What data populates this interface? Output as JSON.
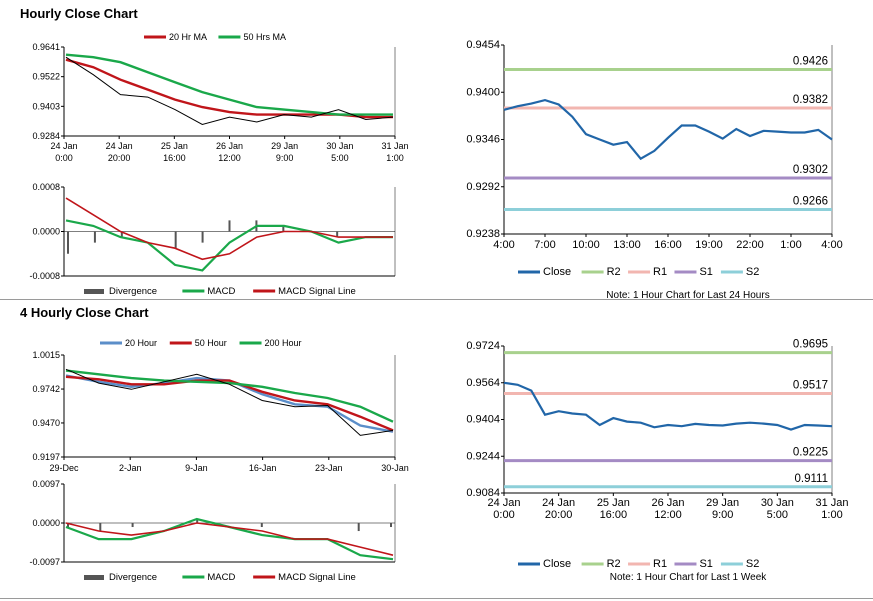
{
  "sections": [
    {
      "title": "Hourly Close Chart"
    },
    {
      "title": "4 Hourly Close Chart"
    }
  ],
  "chart_data": [
    {
      "id": "hourly_price",
      "type": "line",
      "legend": [
        "20 Hr MA",
        "50 Hrs MA"
      ],
      "colors": {
        "price": "#000000",
        "ma20": "#c0151a",
        "ma50": "#1aa84a"
      },
      "yticks": [
        "0.9641",
        "0.9522",
        "0.9403",
        "0.9284"
      ],
      "ylim": [
        0.9284,
        0.9641
      ],
      "xticks": [
        [
          "24 Jan",
          "0:00"
        ],
        [
          "24 Jan",
          "20:00"
        ],
        [
          "25 Jan",
          "16:00"
        ],
        [
          "26 Jan",
          "12:00"
        ],
        [
          "29 Jan",
          "9:00"
        ],
        [
          "30 Jan",
          "5:00"
        ],
        [
          "31 Jan",
          "1:00"
        ]
      ],
      "x": [
        0,
        0.5,
        1,
        1.5,
        2,
        2.5,
        3,
        3.5,
        4,
        4.5,
        5,
        5.5,
        6
      ],
      "series": [
        {
          "name": "20 Hr MA",
          "values": [
            0.959,
            0.956,
            0.951,
            0.947,
            0.943,
            0.94,
            0.938,
            0.937,
            0.937,
            0.937,
            0.937,
            0.936,
            0.936
          ]
        },
        {
          "name": "50 Hrs MA",
          "values": [
            0.961,
            0.96,
            0.958,
            0.954,
            0.95,
            0.946,
            0.943,
            0.94,
            0.939,
            0.938,
            0.937,
            0.937,
            0.937
          ]
        },
        {
          "name": "",
          "values": [
            0.96,
            0.953,
            0.945,
            0.944,
            0.939,
            0.933,
            0.936,
            0.934,
            0.937,
            0.936,
            0.939,
            0.935,
            0.936
          ]
        }
      ]
    },
    {
      "id": "hourly_macd",
      "type": "line",
      "legend": [
        "Divergence",
        "MACD",
        "MACD Signal Line"
      ],
      "colors": {
        "divergence": "#555555",
        "macd": "#1aa84a",
        "signal": "#c0151a"
      },
      "yticks": [
        "0.0008",
        "0.0000",
        "-0.0008"
      ],
      "ylim": [
        -0.0008,
        0.0008
      ],
      "x": [
        0,
        0.5,
        1,
        1.5,
        2,
        2.5,
        3,
        3.5,
        4,
        4.5,
        5,
        5.5,
        6
      ],
      "series": [
        {
          "name": "MACD",
          "values": [
            0.0002,
            0.0001,
            -0.0001,
            -0.0002,
            -0.0006,
            -0.0007,
            -0.0002,
            0.0001,
            0.0001,
            0.0,
            -0.0002,
            -0.0001,
            -0.0001
          ]
        },
        {
          "name": "MACD Signal Line",
          "values": [
            0.0006,
            0.0003,
            0.0,
            -0.0002,
            -0.0003,
            -0.0005,
            -0.0004,
            -0.0001,
            0.0,
            0.0,
            -0.0001,
            -0.0001,
            -0.0001
          ]
        },
        {
          "name": "Divergence",
          "values": [
            -0.0004,
            -0.0002,
            -0.0001,
            0.0,
            -0.0003,
            -0.0002,
            0.0002,
            0.0002,
            0.0001,
            0.0,
            -0.0001,
            0.0,
            0.0
          ]
        }
      ]
    },
    {
      "id": "hourly_levels",
      "type": "line",
      "yticks": [
        "0.9454",
        "0.9400",
        "0.9346",
        "0.9292",
        "0.9238"
      ],
      "ylim": [
        0.9238,
        0.9454
      ],
      "xticks": [
        "4:00",
        "7:00",
        "10:00",
        "13:00",
        "16:00",
        "19:00",
        "22:00",
        "1:00",
        "4:00"
      ],
      "x": [
        0,
        1,
        2,
        3,
        4,
        5,
        6,
        7,
        8,
        9,
        10,
        11,
        12,
        13,
        14,
        15,
        16,
        17,
        18,
        19,
        20,
        21,
        22,
        23,
        24
      ],
      "series": [
        {
          "name": "Close",
          "values": [
            0.938,
            0.9384,
            0.9387,
            0.9391,
            0.9386,
            0.9372,
            0.9352,
            0.9346,
            0.934,
            0.9343,
            0.9324,
            0.9333,
            0.9348,
            0.9362,
            0.9362,
            0.9355,
            0.9347,
            0.9358,
            0.935,
            0.9356,
            0.9355,
            0.9354,
            0.9354,
            0.9357,
            0.9346
          ]
        }
      ],
      "levels": [
        {
          "name": "R2",
          "value": 0.9426,
          "label": "0.9426",
          "color": "#a8d18d"
        },
        {
          "name": "R1",
          "value": 0.9382,
          "label": "0.9382",
          "color": "#f2b6b0"
        },
        {
          "name": "S1",
          "value": 0.9302,
          "label": "0.9302",
          "color": "#a48bc4"
        },
        {
          "name": "S2",
          "value": 0.9266,
          "label": "0.9266",
          "color": "#8dcfd9"
        }
      ],
      "legend": [
        "Close",
        "R2",
        "R1",
        "S1",
        "S2"
      ],
      "note": "Note: 1 Hour Chart for Last 24 Hours"
    },
    {
      "id": "fourhour_price",
      "type": "line",
      "legend": [
        "20 Hour",
        "50 Hour",
        "200 Hour"
      ],
      "colors": {
        "price": "#000000",
        "h20": "#5b8ec9",
        "h50": "#c0151a",
        "h200": "#1aa84a"
      },
      "yticks": [
        "1.0015",
        "0.9742",
        "0.9470",
        "0.9197"
      ],
      "ylim": [
        0.9197,
        1.0015
      ],
      "xticks": [
        "29-Dec",
        "2-Jan",
        "9-Jan",
        "16-Jan",
        "23-Jan",
        "30-Jan"
      ],
      "x": [
        0,
        0.5,
        1,
        1.5,
        2,
        2.5,
        3,
        3.5,
        4,
        4.5,
        5
      ],
      "series": [
        {
          "name": "20 Hour",
          "values": [
            0.985,
            0.98,
            0.976,
            0.979,
            0.983,
            0.981,
            0.97,
            0.962,
            0.96,
            0.945,
            0.94
          ]
        },
        {
          "name": "50 Hour",
          "values": [
            0.984,
            0.982,
            0.978,
            0.978,
            0.981,
            0.981,
            0.972,
            0.965,
            0.962,
            0.952,
            0.941
          ]
        },
        {
          "name": "200 Hour",
          "values": [
            0.989,
            0.986,
            0.983,
            0.981,
            0.98,
            0.979,
            0.976,
            0.971,
            0.967,
            0.96,
            0.948
          ]
        },
        {
          "name": "",
          "values": [
            0.99,
            0.979,
            0.974,
            0.98,
            0.986,
            0.978,
            0.965,
            0.96,
            0.961,
            0.937,
            0.941
          ]
        }
      ]
    },
    {
      "id": "fourhour_macd",
      "type": "line",
      "legend": [
        "Divergence",
        "MACD",
        "MACD Signal Line"
      ],
      "colors": {
        "divergence": "#555555",
        "macd": "#1aa84a",
        "signal": "#c0151a"
      },
      "yticks": [
        "0.0097",
        "0.0000",
        "-0.0097"
      ],
      "ylim": [
        -0.0097,
        0.0097
      ],
      "x": [
        0,
        0.5,
        1,
        1.5,
        2,
        2.5,
        3,
        3.5,
        4,
        4.5,
        5
      ],
      "series": [
        {
          "name": "MACD",
          "values": [
            -0.001,
            -0.004,
            -0.004,
            -0.002,
            0.001,
            -0.001,
            -0.003,
            -0.004,
            -0.004,
            -0.008,
            -0.009
          ]
        },
        {
          "name": "MACD Signal Line",
          "values": [
            0.0,
            -0.002,
            -0.003,
            -0.002,
            0.0,
            -0.001,
            -0.002,
            -0.004,
            -0.004,
            -0.006,
            -0.008
          ]
        },
        {
          "name": "Divergence",
          "values": [
            -0.001,
            -0.002,
            -0.001,
            0.0,
            0.001,
            0.0,
            -0.001,
            0.0,
            0.0,
            -0.002,
            -0.001
          ]
        }
      ]
    },
    {
      "id": "fourhour_levels",
      "type": "line",
      "yticks": [
        "0.9724",
        "0.9564",
        "0.9404",
        "0.9244",
        "0.9084"
      ],
      "ylim": [
        0.9084,
        0.9724
      ],
      "xticks": [
        [
          "24 Jan",
          "0:00"
        ],
        [
          "24 Jan",
          "20:00"
        ],
        [
          "25 Jan",
          "16:00"
        ],
        [
          "26 Jan",
          "12:00"
        ],
        [
          "29 Jan",
          "9:00"
        ],
        [
          "30 Jan",
          "5:00"
        ],
        [
          "31 Jan",
          "1:00"
        ]
      ],
      "x": [
        0,
        0.25,
        0.5,
        0.75,
        1,
        1.25,
        1.5,
        1.75,
        2,
        2.25,
        2.5,
        2.75,
        3,
        3.25,
        3.5,
        3.75,
        4,
        4.25,
        4.5,
        4.75,
        5,
        5.25,
        5.5,
        5.75,
        6
      ],
      "series": [
        {
          "name": "Close",
          "values": [
            0.9564,
            0.9555,
            0.953,
            0.9425,
            0.944,
            0.943,
            0.9425,
            0.938,
            0.941,
            0.9395,
            0.939,
            0.937,
            0.938,
            0.9375,
            0.9385,
            0.938,
            0.9378,
            0.9386,
            0.939,
            0.9386,
            0.938,
            0.936,
            0.938,
            0.9378,
            0.9375
          ]
        }
      ],
      "levels": [
        {
          "name": "R2",
          "value": 0.9695,
          "label": "0.9695",
          "color": "#a8d18d"
        },
        {
          "name": "R1",
          "value": 0.9517,
          "label": "0.9517",
          "color": "#f2b6b0"
        },
        {
          "name": "S1",
          "value": 0.9225,
          "label": "0.9225",
          "color": "#a48bc4"
        },
        {
          "name": "S2",
          "value": 0.9111,
          "label": "0.9111",
          "color": "#8dcfd9"
        }
      ],
      "legend": [
        "Close",
        "R2",
        "R1",
        "S1",
        "S2"
      ],
      "note": "Note: 1 Hour Chart for Last 1 Week"
    }
  ]
}
